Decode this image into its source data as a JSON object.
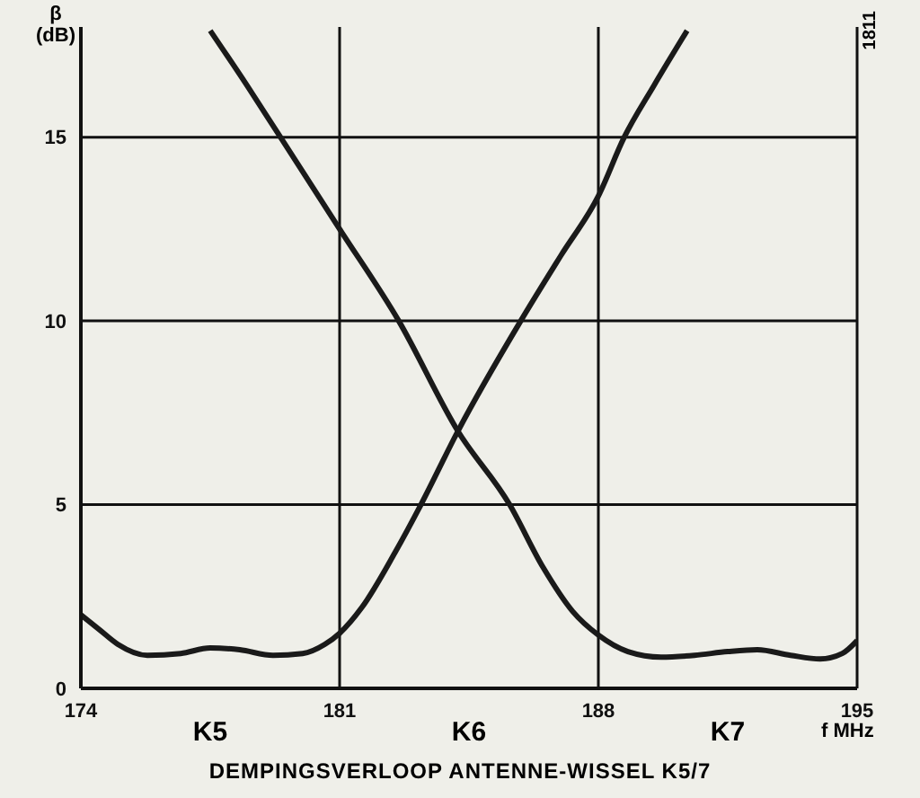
{
  "chart_data": {
    "type": "line",
    "title": "DEMPINGSVERLOOP ANTENNE-WISSEL K5/7",
    "xlabel": "f MHz",
    "ylabel": "β (dB)",
    "xlim": [
      174,
      195
    ],
    "xticks": [
      174,
      181,
      188,
      195
    ],
    "ylim": [
      0,
      18
    ],
    "yticks": [
      0,
      5,
      10,
      15
    ],
    "grid": true,
    "marker": "none",
    "line_style": "solid",
    "annotations": [
      "K5",
      "K6",
      "K7",
      "1811"
    ],
    "series": [
      {
        "color": "#1a1a1a",
        "x": [
          174,
          174.5,
          175,
          175.8,
          176.7,
          177.5,
          178.3,
          179.2,
          180,
          180.6,
          181,
          181.6,
          182.5,
          183.2,
          184.2,
          185.9,
          187,
          188,
          188.7,
          189.5,
          190.4
        ],
        "values": [
          2.0,
          1.6,
          1.2,
          0.9,
          0.95,
          1.1,
          1.05,
          0.9,
          0.95,
          1.2,
          1.5,
          2.2,
          3.7,
          5,
          7,
          10,
          11.8,
          13.4,
          15,
          16.4,
          17.9
        ]
      },
      {
        "color": "#1a1a1a",
        "x": [
          177.5,
          178.5,
          179.4,
          181,
          182.6,
          184.2,
          185.6,
          186.5,
          187.3,
          188,
          188.8,
          189.7,
          190.6,
          191.5,
          192.3,
          193.2,
          194,
          194.6,
          195
        ],
        "values": [
          17.9,
          16.4,
          15,
          12.5,
          10,
          7,
          5,
          3.3,
          2.1,
          1.45,
          1.0,
          0.85,
          0.9,
          1.0,
          1.05,
          0.9,
          0.8,
          0.95,
          1.3
        ]
      }
    ]
  }
}
